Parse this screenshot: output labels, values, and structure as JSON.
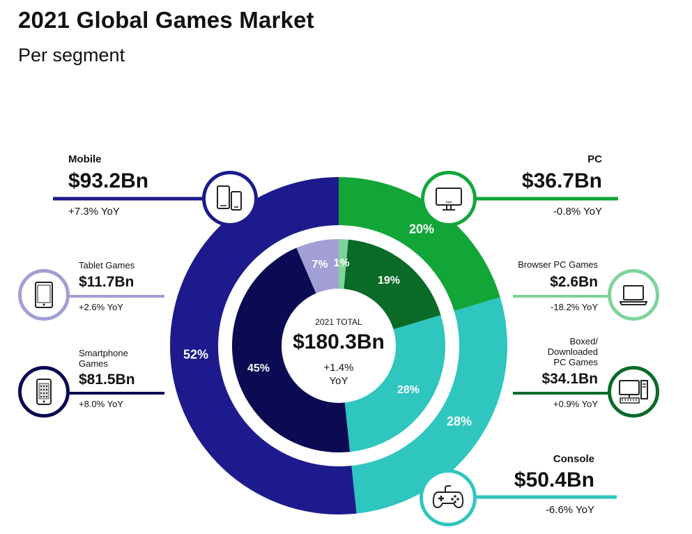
{
  "header": {
    "title": "2021 Global Games Market",
    "subtitle": "Per segment"
  },
  "center": {
    "caption": "2021 TOTAL",
    "total": "$180.3Bn",
    "growth": "+1.4%",
    "growth_unit": "YoY"
  },
  "segments": {
    "mobile": {
      "name": "Mobile",
      "value": "$93.2Bn",
      "yoy": "+7.3% YoY",
      "pct_label": "52%",
      "icon": "mobile-devices-icon"
    },
    "pc": {
      "name": "PC",
      "value": "$36.7Bn",
      "yoy": "-0.8% YoY",
      "pct_label": "20%",
      "icon": "monitor-icon"
    },
    "console": {
      "name": "Console",
      "value": "$50.4Bn",
      "yoy": "-6.6% YoY",
      "pct_label": "28%",
      "icon": "gamepad-icon"
    },
    "tablet": {
      "name": "Tablet Games",
      "value": "$11.7Bn",
      "yoy": "+2.6% YoY",
      "pct_label": "7%",
      "icon": "tablet-icon"
    },
    "smartphone": {
      "name_line1": "Smartphone",
      "name_line2": "Games",
      "value": "$81.5Bn",
      "yoy": "+8.0% YoY",
      "pct_label": "45%",
      "icon": "smartphone-icon"
    },
    "browser": {
      "name": "Browser PC Games",
      "value": "$2.6Bn",
      "yoy": "-18.2% YoY",
      "pct_label": "1%",
      "icon": "laptop-icon"
    },
    "boxed": {
      "name_line1": "Boxed/",
      "name_line2": "Downloaded",
      "name_line3": "PC Games",
      "value": "$34.1Bn",
      "yoy": "+0.9% YoY",
      "pct_label": "19%",
      "icon": "desktop-computer-icon"
    },
    "console_inner": {
      "pct_label": "28%"
    }
  },
  "chart_data": {
    "type": "pie",
    "title": "2021 Global Games Market",
    "subtitle": "Per segment",
    "total": 180.3,
    "unit": "$Bn",
    "outer": {
      "labels": [
        "PC",
        "Console",
        "Mobile"
      ],
      "values": [
        36.7,
        50.4,
        93.2
      ],
      "shares": [
        20,
        28,
        52
      ],
      "yoy": [
        "-0.8%",
        "-6.6%",
        "+7.3%"
      ],
      "colors": [
        "#12a639",
        "#2ec6bf",
        "#1c1a8c"
      ]
    },
    "inner": {
      "labels": [
        "Browser PC Games",
        "Boxed/Downloaded PC Games",
        "Console",
        "Smartphone Games",
        "Tablet Games"
      ],
      "values": [
        2.6,
        34.1,
        50.4,
        81.5,
        11.7
      ],
      "shares": [
        1,
        19,
        28,
        45,
        7
      ],
      "yoy": [
        "-18.2%",
        "+0.9%",
        "-6.6%",
        "+8.0%",
        "+2.6%"
      ],
      "colors": [
        "#7dd49a",
        "#0a6a28",
        "#2ec6bf",
        "#0b0a52",
        "#a19fd4"
      ]
    }
  }
}
